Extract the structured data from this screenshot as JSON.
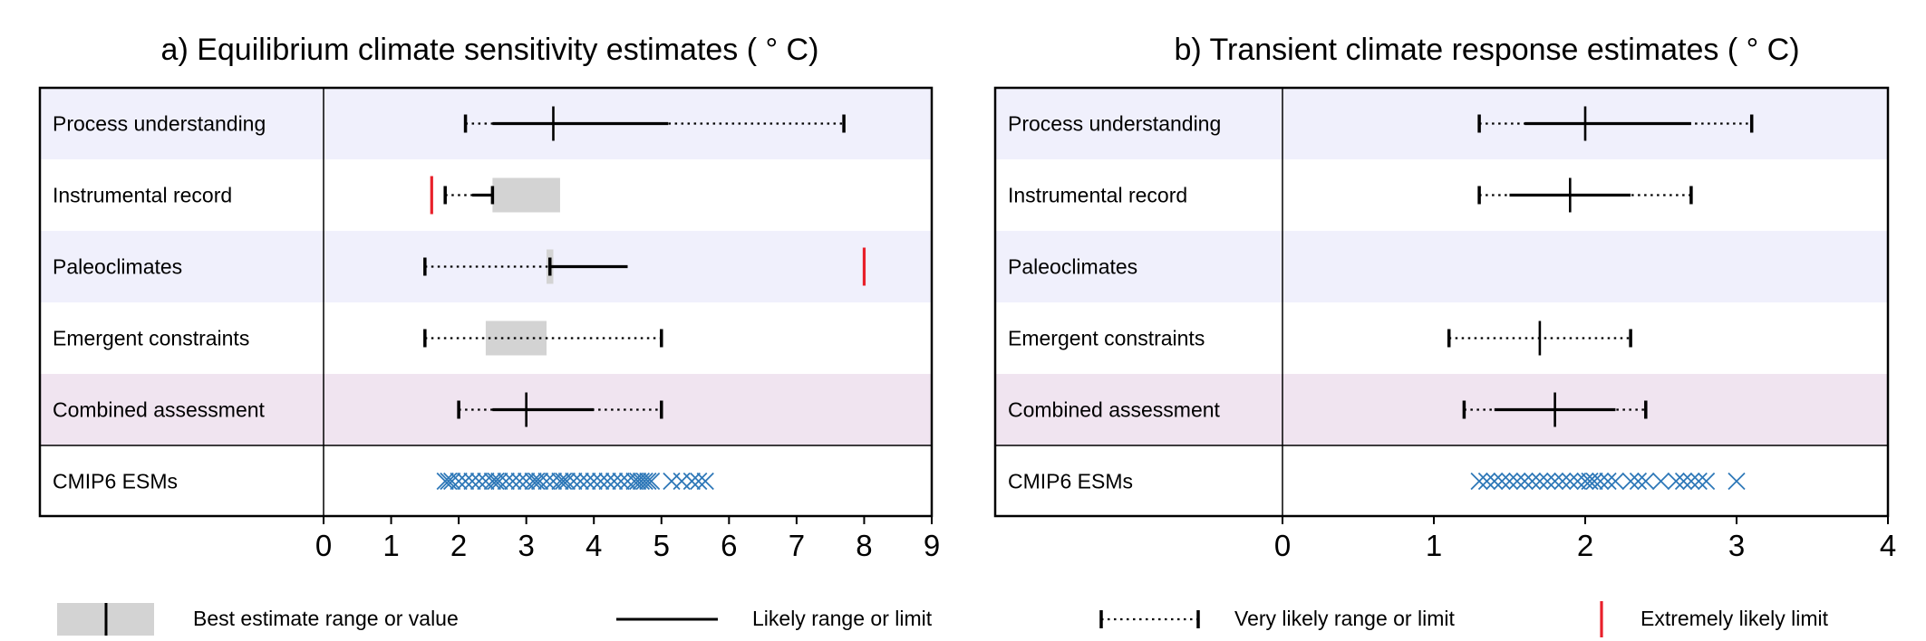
{
  "chart_data": [
    {
      "type": "range",
      "title": "a) Equilibrium climate sensitivity estimates ( ° C)",
      "xlim": [
        0,
        9
      ],
      "ticks": [
        0,
        1,
        2,
        3,
        4,
        5,
        6,
        7,
        8,
        9
      ],
      "rows": [
        {
          "label": "Process understanding",
          "band": "lavender",
          "very_likely": [
            2.1,
            7.7
          ],
          "likely": [
            2.5,
            5.1
          ],
          "best": 3.4
        },
        {
          "label": "Instrumental record",
          "band": "white",
          "very_likely": [
            1.8,
            2.5
          ],
          "likely": [
            2.2,
            2.5
          ],
          "best_range": [
            2.5,
            3.5
          ],
          "extremely_likely": 1.6
        },
        {
          "label": "Paleoclimates",
          "band": "lavender",
          "very_likely": [
            1.5,
            3.35
          ],
          "likely": [
            3.35,
            4.5
          ],
          "best_range": [
            3.3,
            3.4
          ],
          "extremely_likely": 8.0
        },
        {
          "label": "Emergent constraints",
          "band": "white",
          "very_likely": [
            1.5,
            5.0
          ],
          "best_range": [
            2.4,
            3.3
          ]
        },
        {
          "label": "Combined assessment",
          "band": "pink",
          "very_likely": [
            2.0,
            5.0
          ],
          "likely": [
            2.5,
            4.0
          ],
          "best": 3.0
        },
        {
          "label": "CMIP6 ESMs",
          "band": "white",
          "models": [
            1.8,
            1.85,
            1.9,
            2.0,
            2.1,
            2.2,
            2.3,
            2.4,
            2.5,
            2.55,
            2.6,
            2.7,
            2.8,
            2.9,
            3.0,
            3.1,
            3.15,
            3.2,
            3.3,
            3.4,
            3.5,
            3.55,
            3.6,
            3.7,
            3.8,
            3.9,
            4.0,
            4.1,
            4.2,
            4.3,
            4.4,
            4.5,
            4.6,
            4.65,
            4.7,
            4.75,
            4.8,
            4.85,
            5.15,
            5.3,
            5.45,
            5.55,
            5.65
          ]
        }
      ]
    },
    {
      "type": "range",
      "title": "b) Transient climate response estimates ( ° C)",
      "xlim": [
        0,
        4
      ],
      "ticks": [
        0,
        1,
        2,
        3,
        4
      ],
      "rows": [
        {
          "label": "Process understanding",
          "band": "lavender",
          "very_likely": [
            1.3,
            3.1
          ],
          "likely": [
            1.6,
            2.7
          ],
          "best": 2.0
        },
        {
          "label": "Instrumental record",
          "band": "white",
          "very_likely": [
            1.3,
            2.7
          ],
          "likely": [
            1.5,
            2.3
          ],
          "best": 1.9
        },
        {
          "label": "Paleoclimates",
          "band": "lavender"
        },
        {
          "label": "Emergent constraints",
          "band": "white",
          "very_likely": [
            1.1,
            2.3
          ],
          "best": 1.7
        },
        {
          "label": "Combined assessment",
          "band": "pink",
          "very_likely": [
            1.2,
            2.4
          ],
          "likely": [
            1.4,
            2.2
          ],
          "best": 1.8
        },
        {
          "label": "CMIP6 ESMs",
          "band": "white",
          "models": [
            1.3,
            1.35,
            1.4,
            1.45,
            1.5,
            1.55,
            1.6,
            1.65,
            1.7,
            1.75,
            1.8,
            1.85,
            1.9,
            1.95,
            2.0,
            2.03,
            2.06,
            2.1,
            2.15,
            2.2,
            2.3,
            2.35,
            2.4,
            2.5,
            2.6,
            2.65,
            2.7,
            2.75,
            2.8,
            3.0
          ]
        }
      ]
    }
  ],
  "legend": {
    "best_estimate": "Best estimate range or value",
    "likely": "Likely range or limit",
    "very_likely": "Very likely range or limit",
    "extremely_likely": "Extremely likely limit"
  },
  "colors": {
    "lavender": "#f0f0fc",
    "pink": "#f0e4f0",
    "white": "#ffffff",
    "best_range": "#d3d3d3",
    "extremely_likely": "#e8202a",
    "models": "#2e78b8",
    "line": "#000000"
  }
}
